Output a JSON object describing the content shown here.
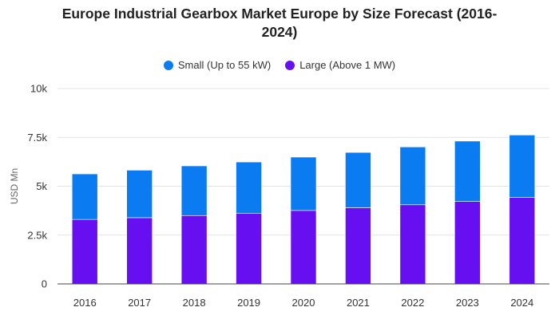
{
  "chart_data": {
    "type": "bar",
    "stacked": true,
    "title": "Europe Industrial Gearbox Market Europe by Size Forecast (2016-2024)",
    "title_lines": [
      "Europe Industrial Gearbox Market Europe by Size Forecast (2016-",
      "2024)"
    ],
    "xlabel": "",
    "ylabel": "USD Mn",
    "ylim": [
      0,
      10000
    ],
    "yticks": [
      0,
      2500,
      5000,
      7500,
      10000
    ],
    "ytick_labels": [
      "0",
      "2.5k",
      "5k",
      "7.5k",
      "10k"
    ],
    "grid": true,
    "legend_position": "top",
    "categories": [
      "2016",
      "2017",
      "2018",
      "2019",
      "2020",
      "2021",
      "2022",
      "2023",
      "2024"
    ],
    "series": [
      {
        "name": "Large (Above 1 MW)",
        "color": "#6610f2",
        "values": [
          3300,
          3390,
          3500,
          3620,
          3760,
          3900,
          4050,
          4220,
          4430
        ]
      },
      {
        "name": "Small (Up to 55 kW)",
        "color": "#0b7bf2",
        "values": [
          2330,
          2430,
          2540,
          2620,
          2730,
          2830,
          2960,
          3090,
          3190
        ]
      }
    ],
    "legend": [
      {
        "name": "Small (Up to 55 kW)",
        "color": "#0b7bf2"
      },
      {
        "name": "Large (Above 1 MW)",
        "color": "#6610f2"
      }
    ]
  }
}
